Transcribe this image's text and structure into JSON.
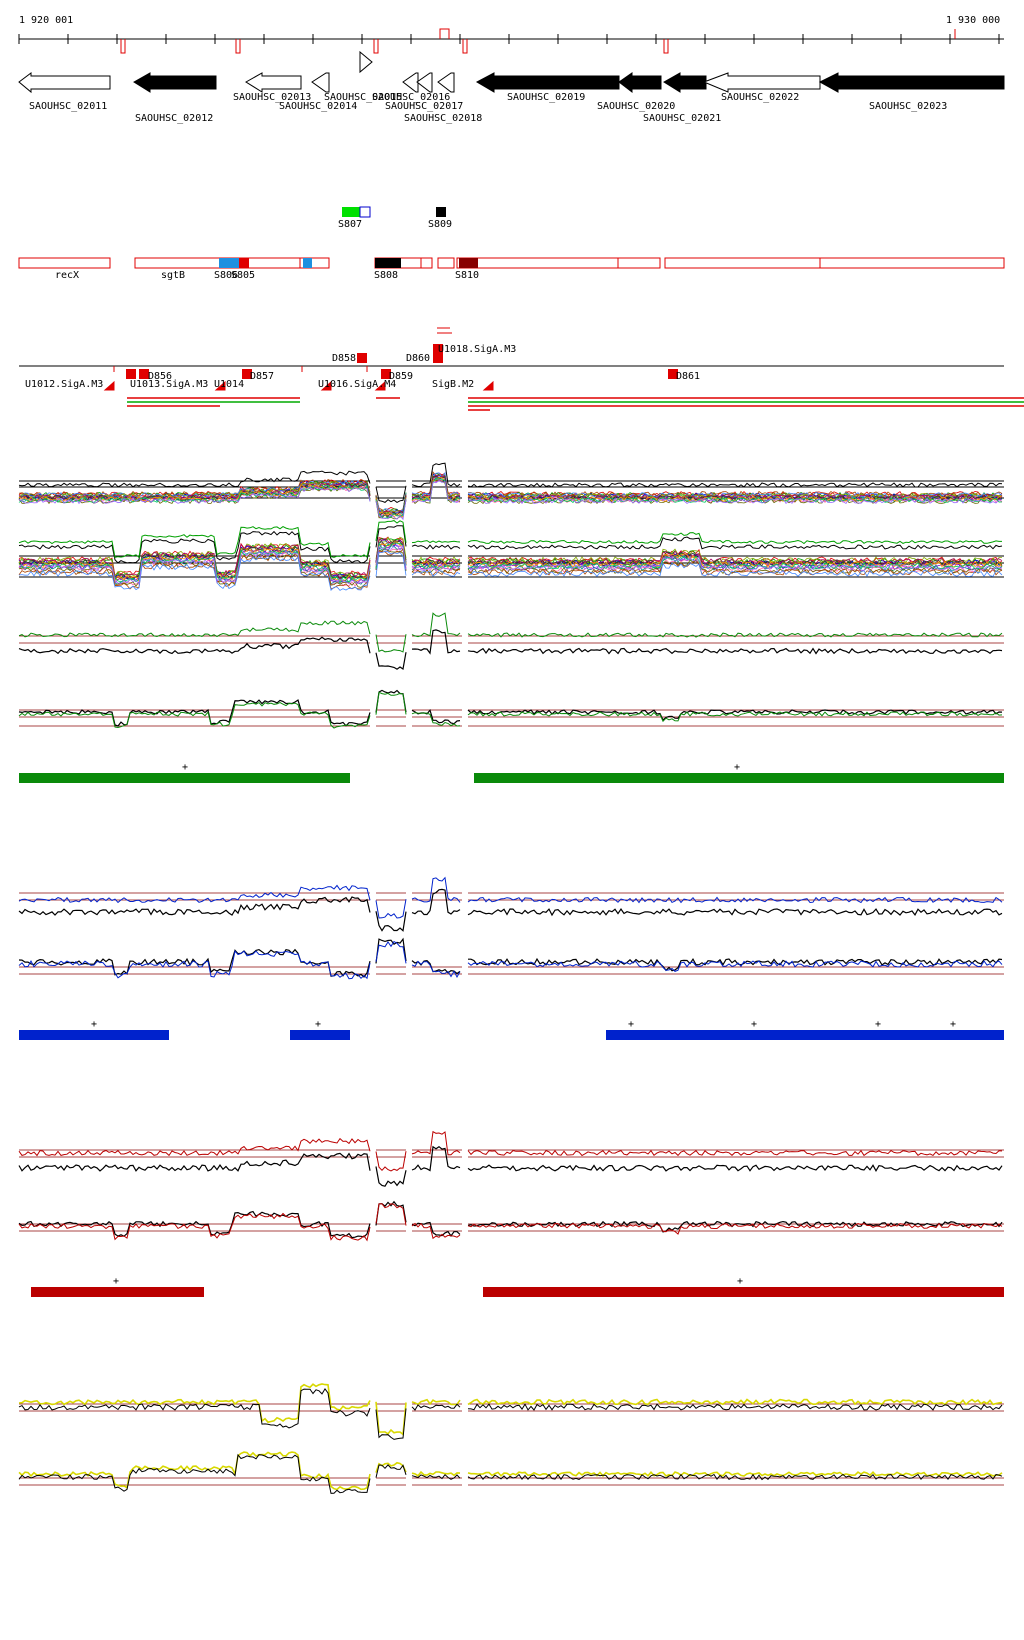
{
  "ruler": {
    "start_label": "1 920 001",
    "end_label": "1 930 000"
  },
  "genes": [
    {
      "label": "SAOUHSC_02011"
    },
    {
      "label": "SAOUHSC_02012"
    },
    {
      "label": "SAOUHSC_02013"
    },
    {
      "label": "SAOUHSC_02014"
    },
    {
      "label": "SAOUHSC_02015"
    },
    {
      "label": "SAOUHSC_02016"
    },
    {
      "label": "SAOUHSC_02017"
    },
    {
      "label": "SAOUHSC_02018"
    },
    {
      "label": "SAOUHSC_02019"
    },
    {
      "label": "SAOUHSC_02020"
    },
    {
      "label": "SAOUHSC_02021"
    },
    {
      "label": "SAOUHSC_02022"
    },
    {
      "label": "SAOUHSC_02023"
    }
  ],
  "s_features_upper": [
    {
      "label": "S807"
    },
    {
      "label": "S809"
    }
  ],
  "s_features_lower": [
    {
      "label": "recX"
    },
    {
      "label": "sgtB"
    },
    {
      "label": "S806"
    },
    {
      "label": "S805"
    },
    {
      "label": "S808"
    },
    {
      "label": "S810"
    }
  ],
  "d_features": [
    {
      "label": "D856"
    },
    {
      "label": "D857"
    },
    {
      "label": "D858"
    },
    {
      "label": "D859"
    },
    {
      "label": "D860"
    },
    {
      "label": "D861"
    }
  ],
  "promoters": [
    {
      "label": "U1012.SigA.M3"
    },
    {
      "label": "U1013.SigA.M3"
    },
    {
      "label": "U1014"
    },
    {
      "label": "U1016.SigA.M4"
    },
    {
      "label": "U1018.SigA.M3"
    },
    {
      "label": "SigB.M2"
    }
  ],
  "track_marks": {
    "green": [
      "+",
      "+"
    ],
    "blue": [
      "+",
      "+",
      "+",
      "+",
      "+",
      "+"
    ],
    "red": [
      "+",
      "+"
    ]
  },
  "colors": {
    "green": "#0a8a0a",
    "blue": "#0022cc",
    "red": "#bb0000",
    "yellow": "#d8d800",
    "feature_red": "#e00000"
  }
}
